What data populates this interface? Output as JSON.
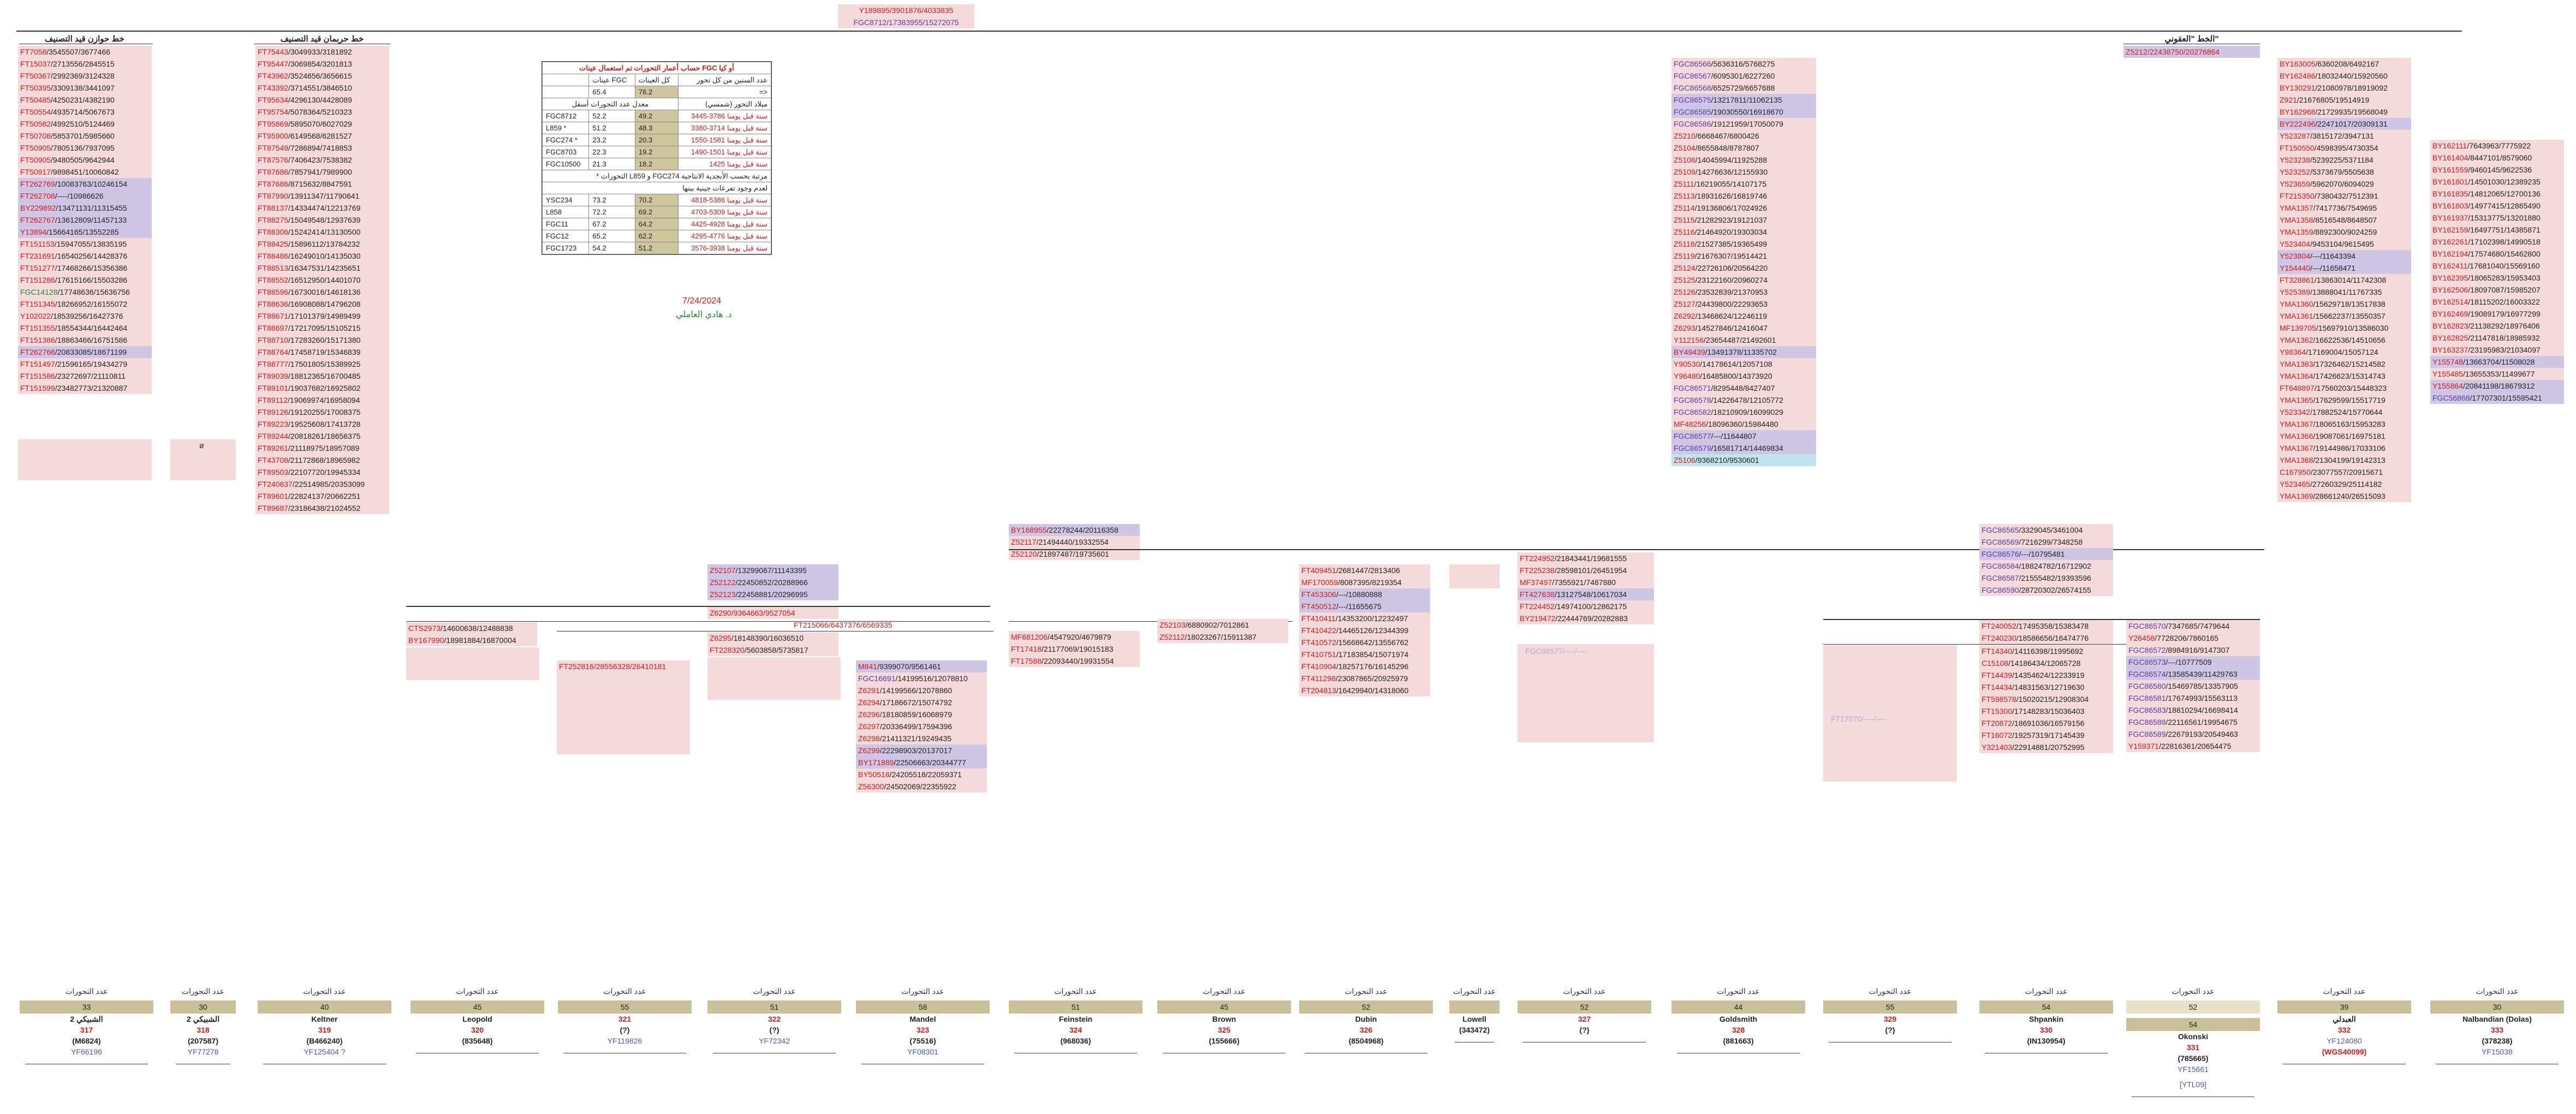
{
  "top_header": {
    "line1": "Y189895/3901876/4033835",
    "line2": "FGC8712/17383955/15272075"
  },
  "left_col1_title": "خط حوازن قيد التصنيف",
  "left_col2_title": "خط حربمان قيد التصنيف",
  "right_title": "الخط \"العقوني\"",
  "right_first": "Z5212/22438750/20276864",
  "col1": [
    "FT7058/3545507/3677466",
    "FT15037/2713556/2845515",
    "FT50367/2992369/3124328",
    "FT50395/3309138/3441097",
    "FT50485/4250231/4382190",
    "FT50554/4935714/5067673",
    "FT50582/4992510/5124469",
    "FT50708/5853701/5985660",
    "FT50905/7805136/7937095",
    "FT50905/9480505/9642944",
    "FT50917/9898451/10060842",
    "FT262769/10083763/10246154",
    "FT262708/----/10986626",
    "BY229892/13471131/11315455",
    "FT262767/13612809/11457133",
    "Y13894/15664165/13552285",
    "FT151153/15947055/13835195",
    "FT231691/16540256/14428376",
    "FT151277/17468266/15356386",
    "FT151286/17615166/15503286",
    "FGC14128/17748636/15636756",
    "FT151345/18266952/16155072",
    "Y102022/18539256/16427376",
    "FT151355/18554344/16442464",
    "FT151386/18863466/16751586",
    "FT262766/20833085/18671199",
    "FT151497/21596165/19434279",
    "FT151586/23272697/21110811",
    "FT151599/23482773/21320887"
  ],
  "col2": [
    "FT75443/3049933/3181892",
    "FT95447/3069854/3201813",
    "FT43962/3524656/3656615",
    "FT43392/3714551/3846510",
    "FT95634/4296130/4428089",
    "FT95754/5078364/5210323",
    "FT95869/5895070/6027029",
    "FT95900/6149568/6281527",
    "FT87549/7286894/7418853",
    "FT87576/7406423/7538382",
    "FT87686/7857941/7989900",
    "FT87686/8715632/8847591",
    "FT87990/13911347/11790641",
    "FT88137/14334474/12213769",
    "FT88275/15049548/12937639",
    "FT88306/15242414/13130500",
    "FT88425/15896112/13784232",
    "FT88486/16249010/14135030",
    "FT88513/16347531/14235651",
    "FT88552/16512950/14401070",
    "FT88596/16730016/14618136",
    "FT88636/16908088/14796208",
    "FT88671/17101379/14989499",
    "FT88697/17217095/15105215",
    "FT88710/17283260/15171380",
    "FT88764/17458719/15346839",
    "FT88777/17501805/15389925",
    "FT89039/18812365/16700485",
    "FT89101/19037682/16925802",
    "FT89112/19069974/16958094",
    "FT89126/19120255/17008375",
    "FT89223/19525608/17413728",
    "FT89244/20818261/18656375",
    "FT89261/21118975/18957089",
    "FT43708/21172868/18965982",
    "FT89503/22107720/19945334",
    "FT240637/22514985/20353099",
    "FT89601/22824137/20662251",
    "FT89687/23186438/21024552"
  ],
  "kit_table": {
    "title": "حساب أعمار التحورات تم استعمال عينات FGC أو كيا",
    "h1": "عدد السنين من كل تحور",
    "h2": "كل العينات",
    "h3": "عينات FGC",
    "h4": "=>",
    "t1_label": "ميلاد التحور (شمسي)",
    "t1_note": "معدل عدد التحورات أسفل",
    "t1_head_vals": [
      "65.4",
      "76.2"
    ],
    "rows1": [
      {
        "name": "FGC8712",
        "a": "52.2",
        "b": "49.2",
        "c": "3445-3786 سنة قبل يومنا"
      },
      {
        "name": "L859 *",
        "a": "51.2",
        "b": "48.3",
        "c": "3380-3714 سنة قبل يومنا"
      },
      {
        "name": "FGC274 *",
        "a": "23.2",
        "b": "20.3",
        "c": "1550-1581 سنة قبل يومنا"
      },
      {
        "name": "FGC8703",
        "a": "22.3",
        "b": "19.2",
        "c": "1490-1501 سنة قبل يومنا"
      },
      {
        "name": "FGC10500",
        "a": "21.3",
        "b": "18.2",
        "c": "1425 سنة قبل يومنا"
      }
    ],
    "t1_footer1": "* التحورات L859 و FGC274 مرتبة بحسب الأبجدية الانتاجية",
    "t1_footer2": "لعدم وجود تفرعات جينية بينها",
    "rows2": [
      {
        "name": "YSC234",
        "a": "73.2",
        "b": "70.2",
        "c": "4818-5386 سنة قبل يومنا"
      },
      {
        "name": "L858",
        "a": "72.2",
        "b": "69.2",
        "c": "4703-5309 سنة قبل يومنا"
      },
      {
        "name": "FGC11",
        "a": "67.2",
        "b": "64.2",
        "c": "4425-4928 سنة قبل يومنا"
      },
      {
        "name": "FGC12",
        "a": "65.2",
        "b": "62.2",
        "c": "4295-4776 سنة قبل يومنا"
      },
      {
        "name": "FGC1723",
        "a": "54.2",
        "b": "51.2",
        "c": "3576-3938 سنة قبل يومنا"
      }
    ],
    "date": "7/24/2024",
    "author": "د. هادي العاملي"
  },
  "mid_col": [
    "FGC86566/5636316/5768275",
    "FGC86567/6095301/6227260",
    "FGC86568/6525729/6657688",
    "FGC86575/13217811/11062135",
    "FGC86585/19030550/16918670",
    "FGC86586/19121959/17050079",
    "Z5210/6668467/6800426",
    "Z5104/8655848/8787807",
    "Z5108/14045994/11925288",
    "Z5109/14276636/12155930",
    "Z5111/16219055/14107175",
    "Z5113/18931626/16819746",
    "Z5114/19136806/17024926",
    "Z5115/21282923/19121037",
    "Z5116/21464920/19303034",
    "Z5118/21527385/19365499",
    "Z5119/21676307/19514421",
    "Z5124/22726106/20564220",
    "Z5125/23122160/20960274",
    "Z5126/23532839/21370953",
    "Z5127/24439800/22293653",
    "Z6292/13468624/12246119",
    "Z6293/14527846/12416047",
    "Y112156/23654487/21492601",
    "BY49439/13491378/11335702",
    "Y90530/14178614/12057108",
    "Y96480/16485800/14373920",
    "FGC86571/8295448/8427407",
    "FGC86578/14226478/12105772",
    "FGC86582/18210909/16099029",
    "MF48256/18096360/15984480",
    "FGC86577/---/11644807",
    "FGC86579/16581714/14469834",
    "Z5106/9368210/9530601"
  ],
  "right_col1": [
    "BY163005/6360208/6492167",
    "BY162486/18032440/15920560",
    "BY130291/21080978/18919092",
    "Z921/21676805/19514919",
    "BY162968/21729935/19568049",
    "BY222496/22471017/20309131",
    "Y523287/3815172/3947131",
    "FT150550/4598395/4730354",
    "Y523238/5239225/5371184",
    "Y523252/5373679/5505638",
    "Y523659/5962070/6094029",
    "FT215350/7380432/7512391",
    "YMA1357/7417736/7549695",
    "YMA1358/8516548/8648507",
    "YMA1359/8892300/9024259",
    "Y523404/9453104/9615495",
    "Y523804/---/11643394",
    "Y154440/---/11658471",
    "FT328861/13863014/11742308",
    "Y525389/13888041/11767335",
    "YMA1360/15629718/13517838",
    "YMA1361/15662237/13550357",
    "MF139705/15697910/13586030",
    "YMA1362/16622536/14510656",
    "Y98364/17169004/15057124",
    "YMA1363/17326462/15214582",
    "YMA1364/17426623/15314743",
    "FT648897/17560203/15448323",
    "YMA1365/17629599/15517719",
    "Y523342/17882524/15770644",
    "YMA1367/18065163/15953283",
    "YMA1366/19087061/16975181",
    "YMA1367/19144986/17033106",
    "YMA1368/21304199/19142313",
    "C167950/23077557/20915671",
    "Y523465/27260329/25114182",
    "YMA1369/28661240/26515093"
  ],
  "right_col2": [
    "BY162111/7643963/7775922",
    "BY161404/8447101/8579060",
    "BY161559/9460145/9622536",
    "BY161801/14501030/12389235",
    "BY161835/14812065/12700136",
    "BY161803/14977415/12865490",
    "BY161937/15313775/13201880",
    "BY162159/16497751/14385871",
    "BY162261/17102398/14990518",
    "BY162194/17574680/15462800",
    "BY162411/17681040/15569160",
    "BY162395/18065283/15953403",
    "BY162506/18097087/15985207",
    "BY162514/18115202/16003322",
    "BY162469/19089179/16977299",
    "BY162823/21138292/18976406",
    "BY162825/21147818/18985932",
    "BY163237/23195983/21034097",
    "Y155748/13663704/11508028",
    "Y155485/13655353/11499677",
    "Y155864/20841198/18679312",
    "FGC56868/17707301/15595421"
  ],
  "branch_mid": [
    "BY168955/22278244/20116358",
    "Z52117/21494440/19332554",
    "Z52120/21897487/19735601"
  ],
  "branch_a": {
    "rows": [
      "Z52107/13299067/11143395",
      "Z52122/22450852/20288966",
      "Z52123/22458881/20296995"
    ],
    "z6290": "Z6290/9364663/9527054",
    "cts": [
      "CTS2973/14600638/12488838",
      "BY167990/18981884/16870004"
    ],
    "ft215066": "FT215066/6437376/6569335",
    "z6295": [
      "Z6295/18148390/16036510",
      "FT228320/5603858/5735817"
    ],
    "ft252816": "FT252816/28556328/26410181",
    "m841": [
      "M841/9399070/9561461",
      "FGC16691/14199516/12078810",
      "Z6291/14199566/12078860",
      "Z6294/17186672/15074792",
      "Z6296/18180859/16068979",
      "Z6297/20336499/17594396",
      "Z6298/21411321/19249435",
      "Z6299/22298903/20137017",
      "BY171889/22506663/20344777",
      "BY50518/24205518/22059371",
      "Z56300/24502069/22355922"
    ]
  },
  "branch_b": {
    "mf": [
      "MF681206/4547920/4679879",
      "FT17418/21177069/19015183",
      "FT17588/22093440/19931554"
    ],
    "z": [
      "Z52103/6880902/7012861",
      "Z52112/18023267/15911387"
    ]
  },
  "branch_c": [
    "FT409451/2681447/2813406",
    "MF170059/8087395/8219354",
    "FT453306/---/10880888",
    "FT450512/---/11655675",
    "FT410411/14353200/12232497",
    "FT410422/14465126/12344399",
    "FT410572/15668642/13556762",
    "FT410751/17183854/15071974",
    "FT410904/18257176/16145296",
    "FT411298/23087865/20925979",
    "FT204813/16429940/14318060"
  ],
  "branch_d": [
    "FT224952/21843441/19681555",
    "FT225238/28598101/26451954",
    "MF37497/7355921/7487880",
    "FT427638/13127548/10617034",
    "FT224452/14974100/12862175",
    "BY219472/22444769/20282883"
  ],
  "branch_e": [
    "FGC86565/3329045/3461004",
    "FGC86569/7216299/7348258",
    "FGC86576/---/10795481",
    "FGC86584/18824782/16712902",
    "FGC86587/21555482/19393596",
    "FGC86590/28720302/26574155"
  ],
  "branch_f": {
    "a": [
      "FT240052/17495358/15383478",
      "FT240230/18586656/16474776"
    ],
    "b": [
      "FT14340/14116398/11995692",
      "C15108/14186434/12065728",
      "FT14439/14354624/12233919",
      "FT14434/14831563/12719630",
      "FT598578/15020215/12908304",
      "FT15300/17148283/15036403",
      "FT20872/18691036/16579156",
      "FT16072/19257319/17145439",
      "Y321403/22914881/20752995"
    ],
    "c": [
      "FGC86570/7347685/7479644",
      "Y26458/7728206/7860165",
      "FGC86572/8984916/9147307",
      "FGC86573/---/10777509",
      "FGC86574/13585439/11429763",
      "FGC86580/15469785/13357905",
      "FGC86581/17674993/15563113",
      "FGC86583/18810294/16698414",
      "FGC86588/22116561/19954675",
      "FGC86589/22679193/20549463",
      "Y159371/22816361/20654475"
    ]
  },
  "bottom": [
    {
      "label": "عدد التحورات",
      "count": "33",
      "name": "الشبيكي 2",
      "num": "317",
      "kit": "(M6824)",
      "code": "YF66196"
    },
    {
      "label": "عدد التحورات",
      "count": "30",
      "name": "الشبيكي 2",
      "num": "318",
      "kit": "(207587)",
      "code": "YF77278"
    },
    {
      "label": "عدد التحورات",
      "count": "40",
      "name": "Keltner",
      "num": "319",
      "kit": "(B466240)",
      "code": "YF125404 ?"
    },
    {
      "label": "عدد التحورات",
      "count": "45",
      "name": "Leopold",
      "num": "320",
      "kit": "(835648)",
      "code": ""
    },
    {
      "label": "عدد التحورات",
      "count": "55",
      "name": "",
      "num": "321",
      "kit": "(?)",
      "code": "YF119826"
    },
    {
      "label": "عدد التحورات",
      "count": "51",
      "name": "",
      "num": "322",
      "kit": "(?)",
      "code": "YF72342"
    },
    {
      "label": "عدد التحورات",
      "count": "58",
      "name": "Mandel",
      "num": "323",
      "kit": "(75516)",
      "code": "YF08301"
    },
    {
      "label": "عدد التحورات",
      "count": "51",
      "name": "Feinstein",
      "num": "324",
      "kit": "(968036)",
      "code": ""
    },
    {
      "label": "عدد التحورات",
      "count": "45",
      "name": "Brown",
      "num": "325",
      "kit": "(155666)",
      "code": ""
    },
    {
      "label": "عدد التحورات",
      "count": "52",
      "name": "Dubin",
      "num": "326",
      "kit": "(8504968)",
      "code": ""
    },
    {
      "label": "عدد التحورات",
      "count": "",
      "name": "Lowell",
      "num": "",
      "kit": "(343472)",
      "code": ""
    },
    {
      "label": "عدد التحورات",
      "count": "52",
      "name": "",
      "num": "327",
      "kit": "(?)",
      "code": ""
    },
    {
      "label": "عدد التحورات",
      "count": "44",
      "name": "Goldsmith",
      "num": "328",
      "kit": "(881663)",
      "code": ""
    },
    {
      "label": "عدد التحورات",
      "count": "55",
      "name": "",
      "num": "329",
      "kit": "(?)",
      "code": ""
    },
    {
      "label": "عدد التحورات",
      "count": "54",
      "name": "Shpankin",
      "num": "330",
      "kit": "(IN130954)",
      "code": ""
    },
    {
      "label": "عدد التحورات",
      "count": "54",
      "name": "Okonski",
      "num": "331",
      "kit": "(785665)",
      "code": "YF15661",
      "extra": "[YTL09]",
      "count_top": "52"
    },
    {
      "label": "عدد التحورات",
      "count": "39",
      "name": "العبدلي",
      "num": "332",
      "kit": "",
      "code": "YF124080",
      "code2": "(WGS40099)"
    },
    {
      "label": "عدد التحورات",
      "count": "30",
      "name": "Nalbandian (Dolas)",
      "num": "333",
      "kit": "(378238)",
      "code": "YF15038"
    }
  ]
}
